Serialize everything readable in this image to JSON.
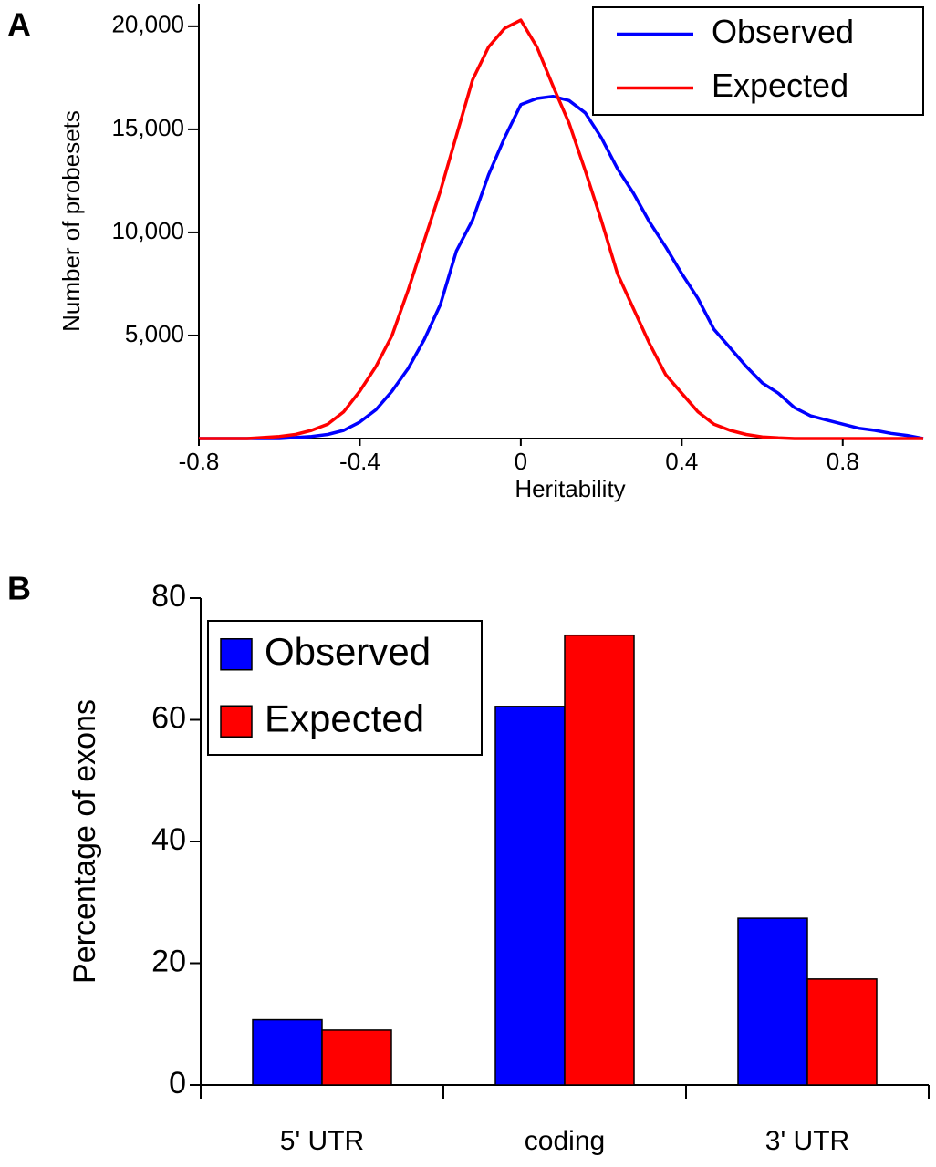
{
  "chart_data": [
    {
      "type": "line",
      "label": "A",
      "xlabel": "Heritability",
      "ylabel": "Number of probesets",
      "x": [
        -0.8,
        -0.76,
        -0.72,
        -0.68,
        -0.64,
        -0.6,
        -0.56,
        -0.52,
        -0.48,
        -0.44,
        -0.4,
        -0.36,
        -0.32,
        -0.28,
        -0.24,
        -0.2,
        -0.16,
        -0.12,
        -0.08,
        -0.04,
        0,
        0.04,
        0.08,
        0.12,
        0.16,
        0.2,
        0.24,
        0.28,
        0.32,
        0.36,
        0.4,
        0.44,
        0.48,
        0.52,
        0.56,
        0.6,
        0.64,
        0.68,
        0.72,
        0.76,
        0.8,
        0.84,
        0.88,
        0.92,
        0.96,
        1.0
      ],
      "series": [
        {
          "name": "Observed",
          "color": "#0000ff",
          "values": [
            0,
            0,
            0,
            0,
            0,
            0,
            50,
            100,
            200,
            400,
            800,
            1400,
            2300,
            3400,
            4800,
            6500,
            9100,
            10600,
            12800,
            14600,
            16200,
            16500,
            16600,
            16400,
            15800,
            14600,
            13100,
            11900,
            10500,
            9300,
            8000,
            6800,
            5300,
            4400,
            3500,
            2700,
            2200,
            1500,
            1100,
            900,
            700,
            500,
            400,
            250,
            150,
            0
          ]
        },
        {
          "name": "Expected",
          "color": "#ff0000",
          "values": [
            0,
            0,
            0,
            0,
            50,
            100,
            200,
            400,
            700,
            1300,
            2300,
            3500,
            5000,
            7200,
            9600,
            12000,
            14700,
            17400,
            19000,
            19900,
            20300,
            19000,
            17100,
            15300,
            13000,
            10600,
            8000,
            6300,
            4600,
            3100,
            2200,
            1300,
            700,
            400,
            200,
            80,
            30,
            0,
            0,
            0,
            0,
            0,
            0,
            0,
            0,
            0
          ]
        }
      ],
      "xlim": [
        -0.8,
        1.0
      ],
      "xticks": [
        -0.8,
        -0.4,
        0,
        0.4,
        0.8
      ],
      "ylim": [
        0,
        21100
      ],
      "yticks": [
        {
          "value": 5000,
          "label": "5,000"
        },
        {
          "value": 10000,
          "label": "10,000"
        },
        {
          "value": 15000,
          "label": "15,000"
        },
        {
          "value": 20000,
          "label": "20,000"
        }
      ],
      "legend": "upper right"
    },
    {
      "type": "bar",
      "label": "B",
      "ylabel": "Percentage of exons",
      "categories": [
        "5' UTR",
        "coding",
        "3' UTR"
      ],
      "series": [
        {
          "name": "Observed",
          "color": "#0000ff",
          "values": [
            10.7,
            62.2,
            27.4
          ]
        },
        {
          "name": "Expected",
          "color": "#ff0000",
          "values": [
            9.0,
            73.9,
            17.4
          ]
        }
      ],
      "ylim": [
        0,
        80
      ],
      "yticks": [
        0,
        20,
        40,
        60,
        80
      ],
      "legend": "upper left"
    }
  ]
}
